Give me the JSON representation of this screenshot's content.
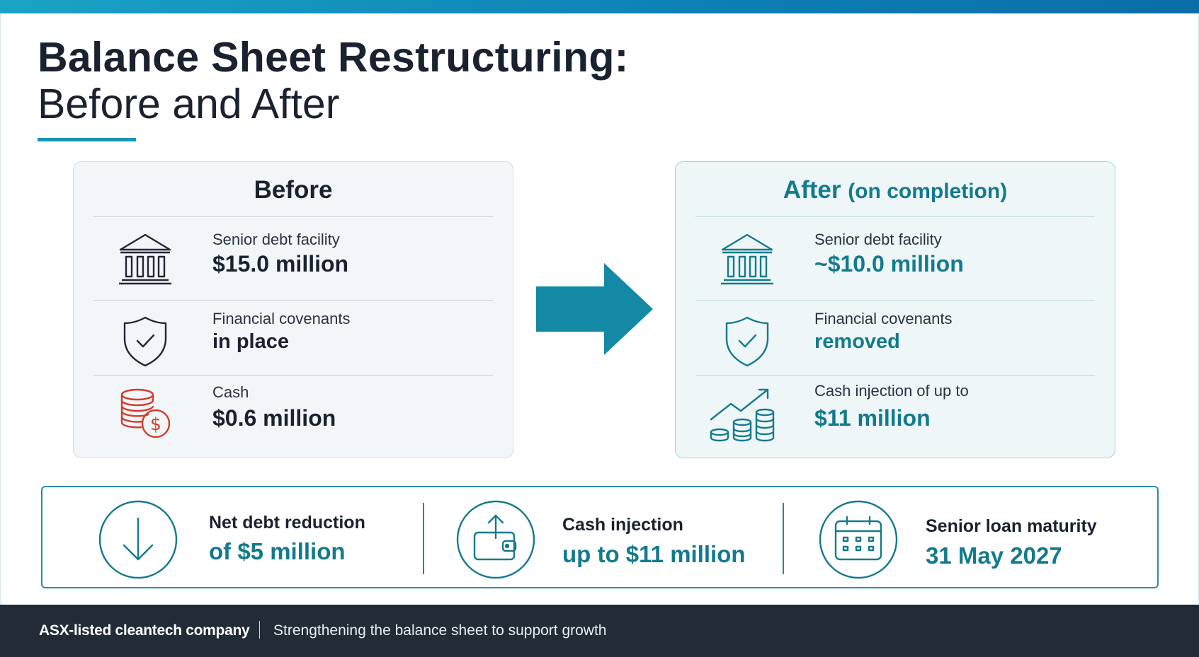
{
  "title": {
    "line1": "Balance Sheet Restructuring:",
    "line2": "Before and After"
  },
  "colors": {
    "accent": "#137a8e",
    "arrow": "#1489a6",
    "alert": "#d33b2c",
    "footer_bg": "#222b36"
  },
  "before": {
    "heading": "Before",
    "rows": [
      {
        "icon": "bank-icon",
        "label": "Senior debt facility",
        "value": "$15.0 million"
      },
      {
        "icon": "shield-check-icon",
        "label": "Financial covenants",
        "value": "in place"
      },
      {
        "icon": "coins-dollar-icon",
        "label": "Cash",
        "value": "$0.6 million"
      }
    ]
  },
  "after": {
    "heading": "After",
    "heading_sub": "(on completion)",
    "rows": [
      {
        "icon": "bank-icon",
        "label": "Senior debt facility",
        "value": "~$10.0 million"
      },
      {
        "icon": "shield-check-icon",
        "label": "Financial covenants",
        "value": "removed"
      },
      {
        "icon": "coins-growth-icon",
        "label": "Cash injection of up to",
        "value": "$11 million"
      }
    ]
  },
  "summary": [
    {
      "icon": "down-arrow-icon",
      "label": "Net debt reduction",
      "value": "of $5 million"
    },
    {
      "icon": "wallet-upload-icon",
      "label": "Cash injection",
      "value": "up to $11 million"
    },
    {
      "icon": "calendar-icon",
      "label": "Senior loan maturity",
      "value": "31 May 2027"
    }
  ],
  "footer": {
    "company": "ASX-listed cleantech company",
    "separator": "|",
    "tagline": "Strengthening the balance sheet to support growth"
  }
}
